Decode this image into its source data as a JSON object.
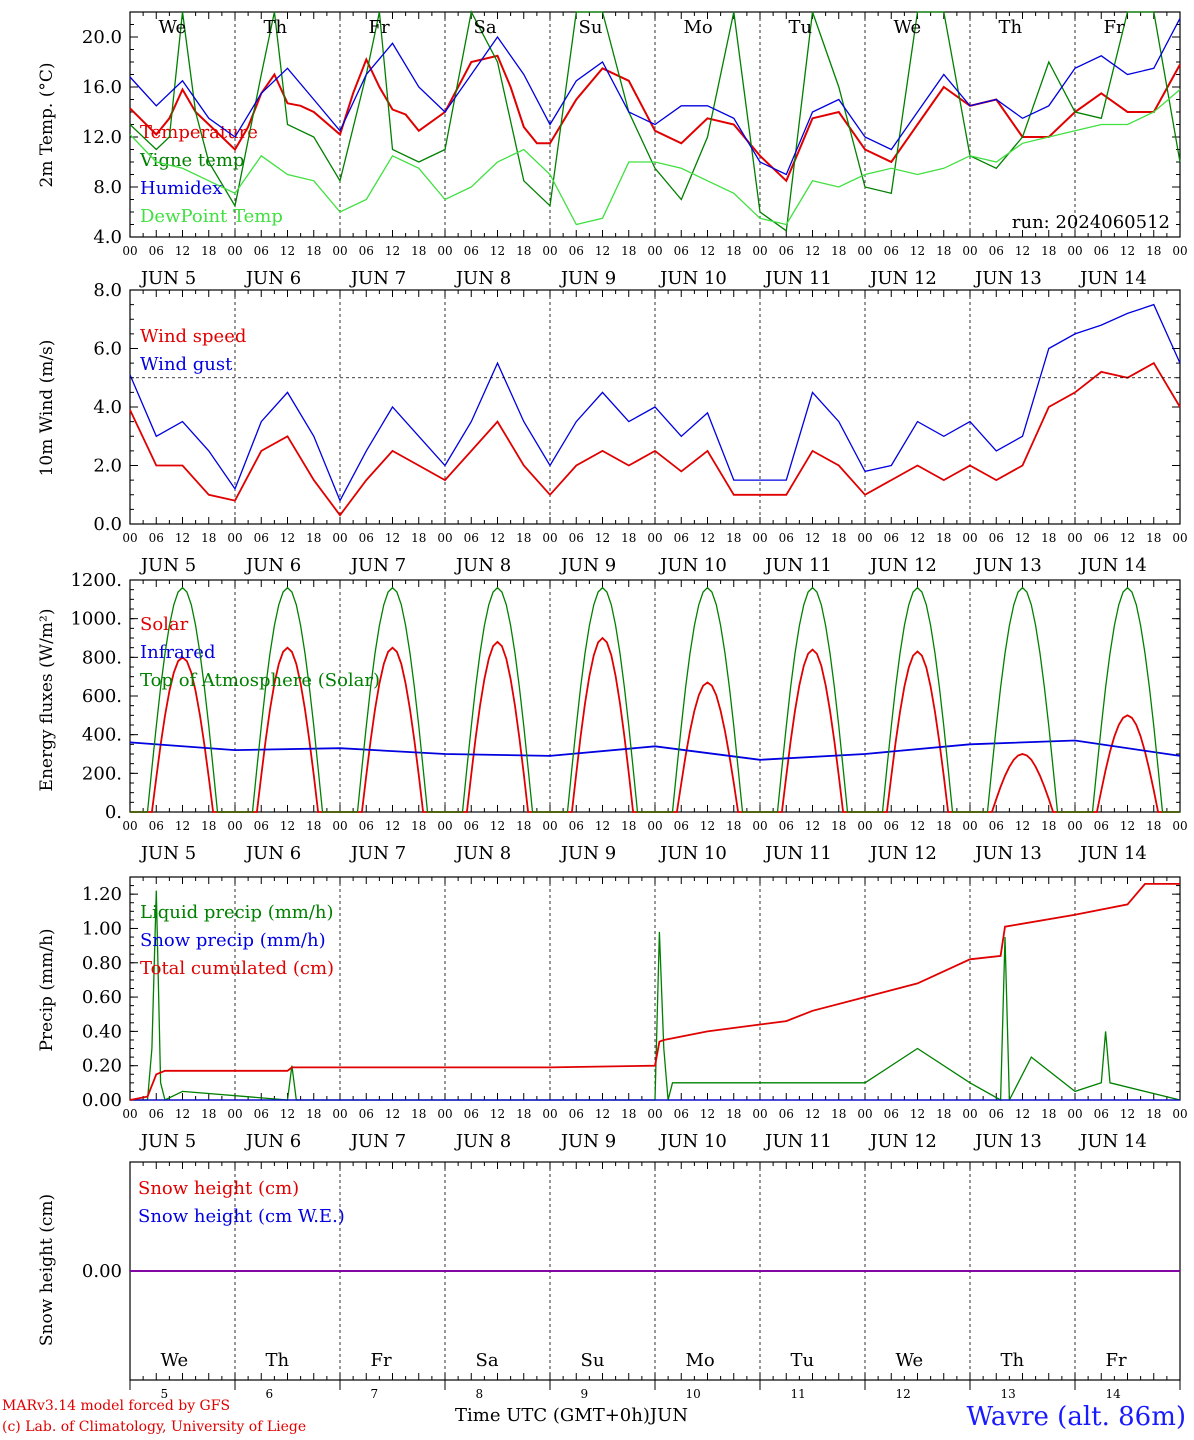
{
  "chart_data": [
    {
      "type": "line",
      "panel": "temperature",
      "ylabel": "2m Temp. (°C)",
      "ylim": [
        4.0,
        22.0
      ],
      "yticks": [
        "4.0",
        "8.0",
        "12.0",
        "16.0",
        "20.0"
      ],
      "run_label": "run: 2024060512",
      "day_labels": [
        "We",
        "Th",
        "Fr",
        "Sa",
        "Su",
        "Mo",
        "Tu",
        "We",
        "Th",
        "Fr"
      ],
      "series": [
        {
          "name": "Temperature",
          "color": "#e00000",
          "x_hours": [
            0,
            6,
            9,
            12,
            15,
            18,
            24,
            27,
            30,
            33,
            36,
            39,
            42,
            48,
            51,
            54,
            57,
            60,
            63,
            66,
            72,
            78,
            84,
            87,
            90,
            93,
            96,
            102,
            108,
            114,
            120,
            126,
            132,
            138,
            144,
            150,
            156,
            162,
            168,
            174,
            180,
            186,
            192,
            198,
            204,
            210,
            216,
            222,
            228,
            234,
            240
          ],
          "values": [
            14.3,
            12.2,
            13.5,
            15.8,
            14.0,
            13.0,
            11.0,
            12.8,
            15.5,
            17.0,
            14.7,
            14.5,
            14.0,
            12.2,
            15.5,
            18.2,
            16.0,
            14.2,
            13.8,
            12.5,
            14.0,
            18.0,
            18.5,
            16.0,
            12.8,
            11.5,
            11.5,
            15.0,
            17.5,
            16.5,
            12.5,
            11.5,
            13.5,
            13.0,
            10.5,
            8.5,
            13.5,
            14.0,
            11.0,
            10.0,
            13.0,
            16.0,
            14.5,
            15.0,
            12.0,
            12.0,
            14.0,
            15.5,
            14.0,
            14.0,
            17.8
          ]
        },
        {
          "name": "Vigne temp",
          "color": "#008000",
          "x_hours": [
            0,
            6,
            9,
            12,
            15,
            18,
            24,
            30,
            33,
            36,
            42,
            48,
            54,
            57,
            60,
            66,
            72,
            78,
            84,
            90,
            96,
            102,
            108,
            114,
            120,
            126,
            132,
            138,
            144,
            150,
            156,
            162,
            168,
            174,
            180,
            186,
            192,
            198,
            204,
            210,
            216,
            222,
            228,
            234,
            240
          ],
          "values": [
            13.0,
            11.0,
            12.0,
            22.0,
            14.0,
            10.0,
            6.5,
            17.0,
            22.0,
            13.0,
            12.0,
            8.5,
            17.0,
            22.0,
            11.0,
            10.0,
            11.0,
            22.0,
            18.0,
            8.5,
            6.5,
            22.0,
            22.0,
            14.0,
            9.5,
            7.0,
            12.0,
            22.0,
            6.0,
            4.5,
            22.0,
            16.0,
            8.0,
            7.5,
            22.0,
            22.0,
            10.5,
            9.5,
            12.0,
            18.0,
            14.0,
            13.5,
            22.0,
            22.0,
            10.0
          ]
        },
        {
          "name": "Humidex",
          "color": "#0000e0",
          "x_hours": [
            0,
            6,
            12,
            18,
            24,
            30,
            36,
            42,
            48,
            54,
            60,
            66,
            72,
            78,
            84,
            90,
            96,
            102,
            108,
            114,
            120,
            126,
            132,
            138,
            144,
            150,
            156,
            162,
            168,
            174,
            180,
            186,
            192,
            198,
            204,
            210,
            216,
            222,
            228,
            234,
            240
          ],
          "values": [
            16.8,
            14.5,
            16.5,
            13.5,
            12.0,
            15.5,
            17.5,
            15.0,
            12.5,
            17.0,
            19.5,
            16.0,
            14.0,
            17.0,
            20.0,
            17.0,
            13.0,
            16.5,
            18.0,
            14.0,
            13.0,
            14.5,
            14.5,
            13.5,
            10.0,
            9.0,
            14.0,
            15.0,
            12.0,
            11.0,
            14.0,
            17.0,
            14.5,
            15.0,
            13.5,
            14.5,
            17.5,
            18.5,
            17.0,
            17.5,
            21.5
          ]
        },
        {
          "name": "DewPoint Temp",
          "color": "#40e040",
          "x_hours": [
            0,
            6,
            12,
            18,
            24,
            30,
            36,
            42,
            48,
            54,
            60,
            66,
            72,
            78,
            84,
            90,
            96,
            102,
            108,
            114,
            120,
            126,
            132,
            138,
            144,
            150,
            156,
            162,
            168,
            174,
            180,
            186,
            192,
            198,
            204,
            210,
            216,
            222,
            228,
            234,
            240
          ],
          "values": [
            12.2,
            10.0,
            9.5,
            8.5,
            7.5,
            10.5,
            9.0,
            8.5,
            6.0,
            7.0,
            10.5,
            9.5,
            7.0,
            8.0,
            10.0,
            11.0,
            9.0,
            5.0,
            5.5,
            10.0,
            10.0,
            9.5,
            8.5,
            7.5,
            5.5,
            5.0,
            8.5,
            8.0,
            9.0,
            9.5,
            9.0,
            9.5,
            10.5,
            10.0,
            11.5,
            12.0,
            12.5,
            13.0,
            13.0,
            14.0,
            15.8
          ]
        }
      ]
    },
    {
      "type": "line",
      "panel": "wind",
      "ylabel": "10m Wind (m/s)",
      "ylim": [
        0.0,
        8.0
      ],
      "yticks": [
        "0.0",
        "2.0",
        "4.0",
        "6.0",
        "8.0"
      ],
      "reference_line": 5.0,
      "series": [
        {
          "name": "Wind speed",
          "color": "#e00000",
          "x_hours": [
            0,
            6,
            12,
            18,
            24,
            30,
            36,
            42,
            48,
            54,
            60,
            66,
            72,
            78,
            84,
            90,
            96,
            102,
            108,
            114,
            120,
            126,
            132,
            138,
            144,
            150,
            156,
            162,
            168,
            174,
            180,
            186,
            192,
            198,
            204,
            210,
            216,
            222,
            228,
            234,
            240
          ],
          "values": [
            3.9,
            2.0,
            2.0,
            1.0,
            0.8,
            2.5,
            3.0,
            1.5,
            0.3,
            1.5,
            2.5,
            2.0,
            1.5,
            2.5,
            3.5,
            2.0,
            1.0,
            2.0,
            2.5,
            2.0,
            2.5,
            1.8,
            2.5,
            1.0,
            1.0,
            1.0,
            2.5,
            2.0,
            1.0,
            1.5,
            2.0,
            1.5,
            2.0,
            1.5,
            2.0,
            4.0,
            4.5,
            5.2,
            5.0,
            5.5,
            4.0
          ]
        },
        {
          "name": "Wind gust",
          "color": "#0000e0",
          "x_hours": [
            0,
            6,
            12,
            18,
            24,
            30,
            36,
            42,
            48,
            54,
            60,
            66,
            72,
            78,
            84,
            90,
            96,
            102,
            108,
            114,
            120,
            126,
            132,
            138,
            144,
            150,
            156,
            162,
            168,
            174,
            180,
            186,
            192,
            198,
            204,
            210,
            216,
            222,
            228,
            234,
            240
          ],
          "values": [
            5.1,
            3.0,
            3.5,
            2.5,
            1.2,
            3.5,
            4.5,
            3.0,
            0.8,
            2.5,
            4.0,
            3.0,
            2.0,
            3.5,
            5.5,
            3.5,
            2.0,
            3.5,
            4.5,
            3.5,
            4.0,
            3.0,
            3.8,
            1.5,
            1.5,
            1.5,
            4.5,
            3.5,
            1.8,
            2.0,
            3.5,
            3.0,
            3.5,
            2.5,
            3.0,
            6.0,
            6.5,
            6.8,
            7.2,
            7.5,
            5.5
          ]
        }
      ]
    },
    {
      "type": "line",
      "panel": "energy",
      "ylabel": "Energy fluxes (W/m²)",
      "ylim": [
        0,
        1200
      ],
      "yticks": [
        "0.",
        "200.",
        "400.",
        "600.",
        "800.",
        "1000.",
        "1200."
      ],
      "series": [
        {
          "name": "Solar",
          "color": "#e00000",
          "peaks": [
            800,
            850,
            850,
            880,
            900,
            670,
            840,
            830,
            300,
            500
          ]
        },
        {
          "name": "Infrared",
          "color": "#0000e0",
          "x_hours": [
            0,
            24,
            48,
            72,
            96,
            120,
            144,
            168,
            192,
            216,
            240
          ],
          "values": [
            360,
            320,
            330,
            300,
            290,
            340,
            270,
            300,
            350,
            370,
            290
          ]
        },
        {
          "name": "Top of Atmosphere (Solar)",
          "color": "#008000",
          "peak": 1160
        }
      ]
    },
    {
      "type": "line",
      "panel": "precip",
      "ylabel": "Precip (mm/h)",
      "ylim": [
        0.0,
        1.3
      ],
      "yticks": [
        "0.00",
        "0.20",
        "0.40",
        "0.60",
        "0.80",
        "1.00",
        "1.20"
      ],
      "series": [
        {
          "name": "Liquid precip (mm/h)",
          "color": "#008000",
          "x_hours": [
            0,
            4,
            5,
            6,
            7,
            8,
            12,
            36,
            37,
            38,
            120,
            121,
            122,
            123,
            124,
            144,
            168,
            180,
            192,
            199,
            200,
            201,
            206,
            216,
            222,
            223,
            224,
            240
          ],
          "values": [
            0,
            0,
            0.3,
            1.22,
            0.1,
            0,
            0.05,
            0,
            0.2,
            0,
            0,
            0.98,
            0.3,
            0,
            0.1,
            0.1,
            0.1,
            0.3,
            0.1,
            0,
            0.95,
            0,
            0.25,
            0.05,
            0.1,
            0.4,
            0.1,
            0
          ]
        },
        {
          "name": "Snow precip (mm/h)",
          "color": "#0000e0",
          "x_hours": [
            0,
            240
          ],
          "values": [
            0,
            0
          ]
        },
        {
          "name": "Total cumulated (cm)",
          "color": "#e00000",
          "x_hours": [
            0,
            4,
            6,
            8,
            24,
            36,
            37,
            48,
            72,
            96,
            120,
            121,
            122,
            132,
            144,
            150,
            156,
            168,
            180,
            192,
            199,
            200,
            216,
            228,
            232,
            240
          ],
          "values": [
            0,
            0.02,
            0.15,
            0.17,
            0.17,
            0.17,
            0.19,
            0.19,
            0.19,
            0.19,
            0.2,
            0.34,
            0.35,
            0.4,
            0.44,
            0.46,
            0.52,
            0.6,
            0.68,
            0.82,
            0.84,
            1.01,
            1.08,
            1.14,
            1.26,
            1.26
          ]
        }
      ]
    },
    {
      "type": "line",
      "panel": "snow",
      "ylabel": "Snow height (cm)",
      "ylim": [
        -1,
        1
      ],
      "yticks": [
        "0.00"
      ],
      "series": [
        {
          "name": "Snow height (cm)",
          "color": "#e00000",
          "x_hours": [
            0,
            240
          ],
          "values": [
            0,
            0
          ]
        },
        {
          "name": "Snow height (cm W.E.)",
          "color": "#0000e0",
          "x_hours": [
            0,
            240
          ],
          "values": [
            0,
            0
          ]
        }
      ]
    }
  ],
  "x_axis": {
    "hour_ticks": [
      "00",
      "06",
      "12",
      "18"
    ],
    "final_tick": "00",
    "day_labels": [
      "JUN  5",
      "JUN  6",
      "JUN  7",
      "JUN  8",
      "JUN  9",
      "JUN 10",
      "JUN 11",
      "JUN 12",
      "JUN 13",
      "JUN 14"
    ],
    "weekdays": [
      "We",
      "Th",
      "Fr",
      "Sa",
      "Su",
      "Mo",
      "Tu",
      "We",
      "Th",
      "Fr"
    ],
    "weekend_color": "#e00000",
    "day_numbers": [
      "5",
      "6",
      "7",
      "8",
      "9",
      "10",
      "11",
      "12",
      "13",
      "14"
    ],
    "title": "Time UTC (GMT+0h)",
    "month": "JUN"
  },
  "footer": {
    "credit_line1": "MARv3.14 model forced by GFS",
    "credit_line2": "(c) Lab. of Climatology, University of Liege",
    "station": "Wavre (alt. 86m)"
  }
}
